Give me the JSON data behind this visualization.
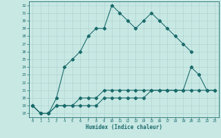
{
  "xlabel": "Humidex (Indice chaleur)",
  "xlim": [
    -0.5,
    23.5
  ],
  "ylim": [
    17.5,
    32.5
  ],
  "xticks": [
    0,
    1,
    2,
    3,
    4,
    5,
    6,
    7,
    8,
    9,
    10,
    11,
    12,
    13,
    14,
    15,
    16,
    17,
    18,
    19,
    20,
    21,
    22,
    23
  ],
  "yticks": [
    18,
    19,
    20,
    21,
    22,
    23,
    24,
    25,
    26,
    27,
    28,
    29,
    30,
    31,
    32
  ],
  "bg_color": "#c8e8e4",
  "grid_color": "#b0d4d0",
  "line_color": "#1a6b6b",
  "line1_x": [
    0,
    1,
    2,
    3,
    4,
    5,
    6,
    7,
    8,
    9,
    10,
    11,
    12,
    13,
    14,
    15,
    16,
    17,
    18,
    19,
    20
  ],
  "line1_y": [
    19,
    18,
    18,
    20,
    24,
    25,
    26,
    28,
    29,
    29,
    32,
    31,
    30,
    29,
    30,
    31,
    30,
    29,
    28,
    27,
    26
  ],
  "line2_x": [
    0,
    1,
    2,
    3,
    4,
    5,
    6,
    7,
    8,
    9,
    10,
    11,
    12,
    13,
    14,
    15,
    16,
    17,
    18,
    19,
    20,
    21,
    22,
    23
  ],
  "line2_y": [
    19,
    18,
    18,
    19,
    19,
    19,
    20,
    20,
    20,
    21,
    21,
    21,
    21,
    21,
    21,
    21,
    21,
    21,
    21,
    21,
    24,
    23,
    21,
    21
  ],
  "line3_x": [
    0,
    1,
    2,
    3,
    4,
    5,
    6,
    7,
    8,
    9,
    10,
    11,
    12,
    13,
    14,
    15,
    16,
    17,
    18,
    19,
    20,
    21,
    22,
    23
  ],
  "line3_y": [
    19,
    18,
    18,
    19,
    19,
    19,
    19,
    19,
    19,
    20,
    20,
    20,
    20,
    20,
    20,
    21,
    21,
    21,
    21,
    21,
    21,
    21,
    21,
    21
  ]
}
